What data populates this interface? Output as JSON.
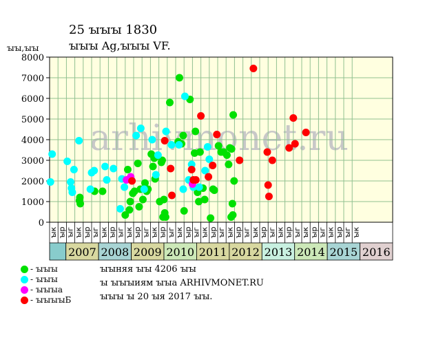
{
  "header": {
    "title": "25 ꙑꙑꙑ 1830",
    "subtitle": "ꙑꙑꙑ Ag,ꙑꙑꙑ VF."
  },
  "legend": [
    {
      "label": "- ꙑꙑꙑ",
      "color": "#00e000"
    },
    {
      "label": "- ꙑꙑꙑ",
      "color": "#00ffff"
    },
    {
      "label": "- ꙑꙑꙑа",
      "color": "#ff00ff"
    },
    {
      "label": "- ꙑꙑꙑꙑБ",
      "color": "#ff0000"
    }
  ],
  "notes": [
    "ꙑꙑняя ꙑꙑ 4206 ꙑꙑ",
    "ꙑ ꙑꙑꙑиям ꙑꙑа ARHIVMONET.RU",
    "ꙑꙑꙑ ꙑ 20 ꙑя 2017 ꙑꙑ."
  ],
  "watermark": "arhivmonet.ru",
  "colors": {
    "plot_bg": "#ffffe0",
    "grid": "#90c090",
    "axis": "#000000"
  },
  "chart_data": {
    "type": "scatter",
    "ylabel": "ꙑꙑ,ꙑꙑ",
    "ylim": [
      0,
      8000
    ],
    "yticks": [
      0,
      1000,
      2000,
      3000,
      4000,
      5000,
      6000,
      7000,
      8000
    ],
    "grid": true,
    "x_unit": "quarter",
    "quarter_labels": [
      "ꙑк",
      "ꙑр",
      "ꙑг",
      "ꙑк",
      "ꙑр",
      "ꙑг",
      "ꙑк",
      "ꙑр",
      "ꙑг",
      "ꙑк",
      "ꙑр",
      "ꙑг",
      "ꙑк",
      "ꙑр",
      "ꙑг",
      "ꙑк",
      "ꙑр",
      "ꙑг",
      "ꙑк",
      "ꙑр",
      "ꙑг",
      "ꙑк",
      "ꙑр",
      "ꙑг",
      "ꙑк",
      "ꙑр",
      "ꙑг",
      "ꙑк",
      "ꙑр",
      "ꙑг",
      "ꙑк",
      "ꙑр",
      "ꙑг",
      "ꙑк",
      "ꙑр",
      "ꙑг",
      "ꙑк"
    ],
    "years": [
      {
        "label": "",
        "start": 0,
        "end": 2,
        "color": "#88cccc"
      },
      {
        "label": "2007",
        "start": 2,
        "end": 6,
        "color": "#d8d8a0"
      },
      {
        "label": "2008",
        "start": 6,
        "end": 10,
        "color": "#a8d4d4"
      },
      {
        "label": "2009",
        "start": 10,
        "end": 14,
        "color": "#d8d8a0"
      },
      {
        "label": "2010",
        "start": 14,
        "end": 18,
        "color": "#cce8b8"
      },
      {
        "label": "2011",
        "start": 18,
        "end": 22,
        "color": "#d8d8a0"
      },
      {
        "label": "2012",
        "start": 22,
        "end": 26,
        "color": "#d8d8a0"
      },
      {
        "label": "2013",
        "start": 26,
        "end": 30,
        "color": "#c8f0e0"
      },
      {
        "label": "2014",
        "start": 30,
        "end": 34,
        "color": "#cce8b8"
      },
      {
        "label": "2015",
        "start": 34,
        "end": 38,
        "color": "#a8d4d4"
      },
      {
        "label": "2016",
        "start": 38,
        "end": 42,
        "color": "#e0d0d0"
      }
    ],
    "series": [
      {
        "name": "- ꙑꙑꙑ",
        "color": "#00e000",
        "points": [
          [
            3.55,
            1050
          ],
          [
            3.6,
            1200
          ],
          [
            3.65,
            900
          ],
          [
            5.35,
            1500
          ],
          [
            6.3,
            1500
          ],
          [
            9.0,
            350
          ],
          [
            9.3,
            2550
          ],
          [
            9.5,
            600
          ],
          [
            9.6,
            1000
          ],
          [
            9.9,
            1400
          ],
          [
            10.1,
            1500
          ],
          [
            10.5,
            2850
          ],
          [
            10.65,
            750
          ],
          [
            10.8,
            1600
          ],
          [
            11.1,
            1100
          ],
          [
            11.35,
            1900
          ],
          [
            11.55,
            1500
          ],
          [
            11.7,
            1600
          ],
          [
            12.1,
            3300
          ],
          [
            12.3,
            2700
          ],
          [
            12.45,
            3100
          ],
          [
            12.55,
            2100
          ],
          [
            12.75,
            3200
          ],
          [
            13.1,
            1000
          ],
          [
            13.3,
            2900
          ],
          [
            13.4,
            3000
          ],
          [
            13.5,
            250
          ],
          [
            13.6,
            1100
          ],
          [
            13.7,
            450
          ],
          [
            13.8,
            250
          ],
          [
            14.3,
            5800
          ],
          [
            15.3,
            3900
          ],
          [
            15.45,
            7000
          ],
          [
            15.7,
            3800
          ],
          [
            15.9,
            4200
          ],
          [
            16.0,
            550
          ],
          [
            16.7,
            5950
          ],
          [
            17.25,
            3350
          ],
          [
            17.35,
            4400
          ],
          [
            17.6,
            1450
          ],
          [
            17.75,
            1000
          ],
          [
            17.9,
            3400
          ],
          [
            18.25,
            1650
          ],
          [
            18.45,
            1100
          ],
          [
            19.15,
            200
          ],
          [
            19.45,
            1600
          ],
          [
            19.6,
            1550
          ],
          [
            20.1,
            3700
          ],
          [
            20.4,
            3400
          ],
          [
            20.7,
            3400
          ],
          [
            21.1,
            3250
          ],
          [
            21.3,
            2800
          ],
          [
            21.45,
            3600
          ],
          [
            21.6,
            250
          ],
          [
            21.65,
            3550
          ],
          [
            21.75,
            900
          ],
          [
            21.8,
            350
          ],
          [
            21.85,
            5200
          ],
          [
            21.95,
            2000
          ]
        ]
      },
      {
        "name": "- ꙑꙑꙑ",
        "color": "#00ffff",
        "points": [
          [
            0.1,
            1950
          ],
          [
            0.3,
            3300
          ],
          [
            2.1,
            2950
          ],
          [
            2.5,
            1950
          ],
          [
            2.6,
            1650
          ],
          [
            2.7,
            1450
          ],
          [
            2.9,
            2550
          ],
          [
            3.5,
            3950
          ],
          [
            4.85,
            1600
          ],
          [
            5.0,
            2400
          ],
          [
            5.3,
            2500
          ],
          [
            6.6,
            2700
          ],
          [
            6.8,
            2050
          ],
          [
            7.6,
            2600
          ],
          [
            8.4,
            650
          ],
          [
            8.6,
            2100
          ],
          [
            8.9,
            1700
          ],
          [
            9.75,
            2050
          ],
          [
            10.3,
            4200
          ],
          [
            10.85,
            4550
          ],
          [
            11.25,
            1600
          ],
          [
            12.2,
            4000
          ],
          [
            12.65,
            2300
          ],
          [
            12.9,
            3250
          ],
          [
            13.85,
            4400
          ],
          [
            14.5,
            3750
          ],
          [
            15.4,
            3750
          ],
          [
            15.9,
            1600
          ],
          [
            16.1,
            6100
          ],
          [
            16.55,
            2050
          ],
          [
            16.9,
            2800
          ],
          [
            17.1,
            1700
          ],
          [
            17.8,
            1700
          ],
          [
            18.5,
            2500
          ],
          [
            18.8,
            3650
          ],
          [
            19.0,
            3050
          ]
        ]
      },
      {
        "name": "- ꙑꙑꙑа",
        "color": "#ff00ff",
        "points": [
          [
            9.15,
            2050
          ],
          [
            9.65,
            2200
          ],
          [
            17.0,
            1850
          ]
        ]
      },
      {
        "name": "- ꙑꙑꙑꙑБ",
        "color": "#ff0000",
        "points": [
          [
            9.8,
            2000
          ],
          [
            13.7,
            3950
          ],
          [
            14.4,
            2600
          ],
          [
            14.55,
            1300
          ],
          [
            16.9,
            2550
          ],
          [
            17.1,
            2050
          ],
          [
            17.4,
            2050
          ],
          [
            18.0,
            5150
          ],
          [
            18.9,
            2200
          ],
          [
            19.4,
            2750
          ],
          [
            19.9,
            4250
          ],
          [
            22.6,
            3000
          ],
          [
            24.25,
            7450
          ],
          [
            25.9,
            3400
          ],
          [
            26.0,
            1800
          ],
          [
            26.1,
            1250
          ],
          [
            26.5,
            3000
          ],
          [
            28.5,
            3600
          ],
          [
            29.0,
            5050
          ],
          [
            29.2,
            3800
          ],
          [
            30.5,
            4350
          ]
        ]
      }
    ]
  }
}
